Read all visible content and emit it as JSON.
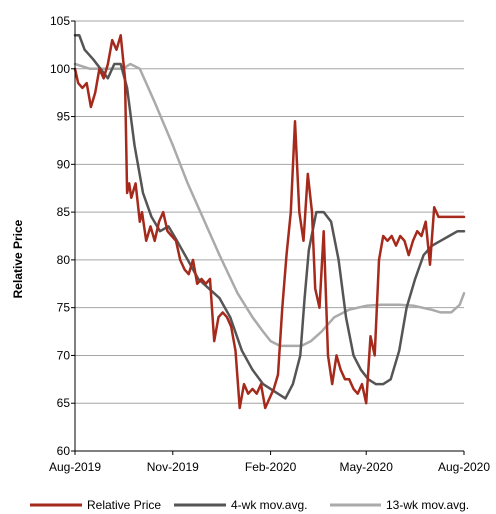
{
  "chart_data": {
    "type": "line",
    "title": "",
    "xlabel": "",
    "ylabel": "Relative Price",
    "ylim": [
      60,
      105
    ],
    "yticks": [
      60,
      65,
      70,
      75,
      80,
      85,
      90,
      95,
      100,
      105
    ],
    "xlim": [
      "2019-08-01",
      "2020-08-01"
    ],
    "xticks": [
      {
        "date": "2019-08-01",
        "label": "Aug-2019"
      },
      {
        "date": "2019-11-01",
        "label": "Nov-2019"
      },
      {
        "date": "2020-02-01",
        "label": "Feb-2020"
      },
      {
        "date": "2020-05-01",
        "label": "May-2020"
      },
      {
        "date": "2020-08-01",
        "label": "Aug-2020"
      }
    ],
    "grid": "horizontal",
    "legend_position": "bottom",
    "series": [
      {
        "name": "Relative Price",
        "color": "#a52a1c",
        "x": [
          "2019-08-01",
          "2019-08-04",
          "2019-08-08",
          "2019-08-12",
          "2019-08-16",
          "2019-08-20",
          "2019-08-24",
          "2019-08-28",
          "2019-09-01",
          "2019-09-05",
          "2019-09-09",
          "2019-09-13",
          "2019-09-17",
          "2019-09-19",
          "2019-09-21",
          "2019-09-23",
          "2019-09-27",
          "2019-10-01",
          "2019-10-03",
          "2019-10-07",
          "2019-10-11",
          "2019-10-15",
          "2019-10-19",
          "2019-10-23",
          "2019-10-27",
          "2019-10-31",
          "2019-11-04",
          "2019-11-08",
          "2019-11-12",
          "2019-11-16",
          "2019-11-20",
          "2019-11-24",
          "2019-11-28",
          "2019-12-02",
          "2019-12-06",
          "2019-12-10",
          "2019-12-14",
          "2019-12-18",
          "2019-12-22",
          "2019-12-26",
          "2019-12-30",
          "2020-01-03",
          "2020-01-07",
          "2020-01-11",
          "2020-01-15",
          "2020-01-19",
          "2020-01-23",
          "2020-01-27",
          "2020-01-31",
          "2020-02-04",
          "2020-02-08",
          "2020-02-12",
          "2020-02-16",
          "2020-02-20",
          "2020-02-24",
          "2020-02-28",
          "2020-03-03",
          "2020-03-07",
          "2020-03-11",
          "2020-03-14",
          "2020-03-18",
          "2020-03-22",
          "2020-03-26",
          "2020-03-30",
          "2020-04-03",
          "2020-04-07",
          "2020-04-11",
          "2020-04-15",
          "2020-04-19",
          "2020-04-23",
          "2020-04-27",
          "2020-05-01",
          "2020-05-05",
          "2020-05-09",
          "2020-05-13",
          "2020-05-17",
          "2020-05-21",
          "2020-05-25",
          "2020-05-29",
          "2020-06-02",
          "2020-06-06",
          "2020-06-10",
          "2020-06-14",
          "2020-06-18",
          "2020-06-22",
          "2020-06-26",
          "2020-06-30",
          "2020-07-04",
          "2020-07-08",
          "2020-07-12",
          "2020-07-16",
          "2020-07-20",
          "2020-07-24",
          "2020-07-28",
          "2020-08-01"
        ],
        "y": [
          100,
          98.5,
          98,
          98.5,
          96,
          97.5,
          100,
          99,
          100.5,
          103,
          102,
          103.5,
          99,
          87,
          88,
          86.5,
          88,
          84,
          85,
          82,
          83.5,
          82,
          84,
          85,
          83,
          82.5,
          82,
          80,
          79,
          78.5,
          80,
          77.5,
          78,
          77.5,
          78,
          71.5,
          74,
          74.5,
          74,
          73,
          70.5,
          64.5,
          67,
          66,
          66.5,
          66,
          67,
          64.5,
          65.5,
          66.5,
          68,
          75,
          80.5,
          85,
          94.5,
          85,
          82,
          89,
          85,
          77,
          75,
          83,
          70,
          67,
          70,
          68.5,
          67.5,
          67.5,
          66.5,
          66,
          67,
          65,
          72,
          70,
          80,
          82.5,
          82,
          82.5,
          81.5,
          82.5,
          82,
          80.5,
          82,
          83,
          82.5,
          84,
          79.5,
          85.5,
          84.5,
          84.5,
          84.5,
          84.5,
          84.5,
          84.5,
          84.5
        ]
      },
      {
        "name": "4-wk mov.avg.",
        "color": "#555555",
        "x": [
          "2019-08-01",
          "2019-08-05",
          "2019-08-10",
          "2019-08-18",
          "2019-08-25",
          "2019-09-01",
          "2019-09-07",
          "2019-09-13",
          "2019-09-19",
          "2019-09-26",
          "2019-10-04",
          "2019-10-12",
          "2019-10-20",
          "2019-10-28",
          "2019-11-05",
          "2019-11-15",
          "2019-11-25",
          "2019-12-05",
          "2019-12-15",
          "2019-12-25",
          "2020-01-05",
          "2020-01-15",
          "2020-01-25",
          "2020-02-01",
          "2020-02-08",
          "2020-02-15",
          "2020-02-22",
          "2020-02-29",
          "2020-03-04",
          "2020-03-08",
          "2020-03-15",
          "2020-03-22",
          "2020-03-29",
          "2020-04-05",
          "2020-04-12",
          "2020-04-19",
          "2020-04-26",
          "2020-05-03",
          "2020-05-10",
          "2020-05-17",
          "2020-05-24",
          "2020-06-01",
          "2020-06-08",
          "2020-06-16",
          "2020-06-24",
          "2020-07-02",
          "2020-07-10",
          "2020-07-18",
          "2020-07-26",
          "2020-08-01"
        ],
        "y": [
          103.5,
          103.5,
          102,
          101,
          100,
          99,
          100.5,
          100.5,
          98,
          92,
          87,
          84.5,
          83,
          83.5,
          82,
          80,
          78,
          77,
          76,
          74,
          70.5,
          68.5,
          67,
          66.5,
          66,
          65.5,
          67,
          70,
          76,
          81,
          85,
          85,
          84,
          80,
          74,
          70,
          68.5,
          67.5,
          67,
          67,
          67.5,
          70.5,
          75,
          78,
          80.5,
          81.5,
          82,
          82.5,
          83,
          83
        ]
      },
      {
        "name": "13-wk mov.avg.",
        "color": "#aaaaaa",
        "x": [
          "2019-08-01",
          "2019-08-15",
          "2019-09-01",
          "2019-09-15",
          "2019-09-22",
          "2019-10-01",
          "2019-10-15",
          "2019-11-01",
          "2019-11-15",
          "2019-12-01",
          "2019-12-15",
          "2020-01-01",
          "2020-01-15",
          "2020-01-25",
          "2020-02-01",
          "2020-02-10",
          "2020-02-20",
          "2020-03-01",
          "2020-03-10",
          "2020-03-20",
          "2020-04-01",
          "2020-04-15",
          "2020-05-01",
          "2020-05-15",
          "2020-06-01",
          "2020-06-15",
          "2020-07-01",
          "2020-07-10",
          "2020-07-20",
          "2020-07-28",
          "2020-08-01"
        ],
        "y": [
          100.5,
          100,
          100,
          100,
          100.5,
          100,
          96.5,
          92,
          88,
          84,
          80.5,
          76.5,
          74,
          72.5,
          71.5,
          71,
          71,
          71,
          71.5,
          72.5,
          74,
          74.8,
          75.2,
          75.3,
          75.3,
          75.2,
          74.8,
          74.5,
          74.5,
          75.3,
          76.5
        ]
      }
    ]
  }
}
